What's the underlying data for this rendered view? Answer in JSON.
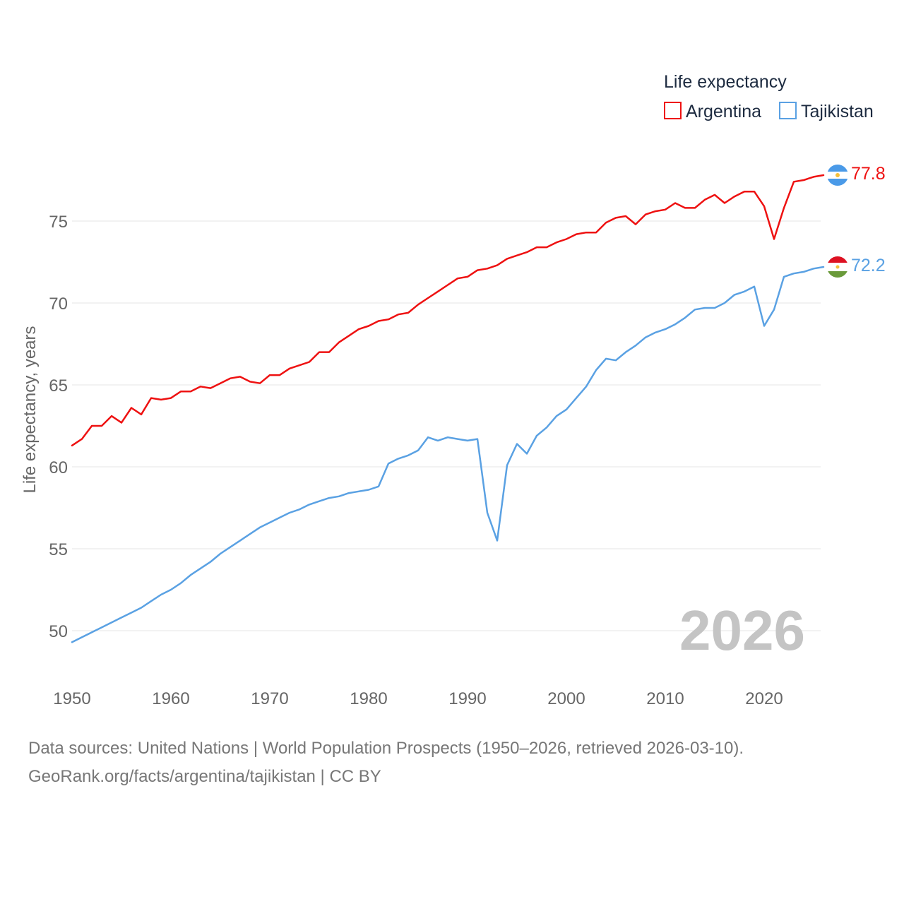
{
  "legend": {
    "title": "Life expectancy"
  },
  "watermark_year": "2026",
  "footer": {
    "line1": "Data sources: United Nations | World Population Prospects (1950–2026, retrieved 2026-03-10).",
    "line2": "GeoRank.org/facts/argentina/tajikistan | CC BY"
  },
  "colors": {
    "argentina": "#ee1111",
    "tajikistan": "#5aa1e3",
    "grid": "#e6e6e6",
    "flag_argentina_blue": "#4a9ae8",
    "flag_tajikistan_red": "#dd1122",
    "flag_tajikistan_green": "#6a9a3a",
    "flag_sun": "#f5c03a"
  },
  "chart_data": {
    "type": "line",
    "title": "Life expectancy",
    "xlabel": "",
    "ylabel": "Life expectancy, years",
    "xlim": [
      1950,
      2026
    ],
    "ylim": [
      48,
      80
    ],
    "xticks": [
      1950,
      1960,
      1970,
      1980,
      1990,
      2000,
      2010,
      2020
    ],
    "yticks": [
      50,
      55,
      60,
      65,
      70,
      75
    ],
    "grid": true,
    "legend_position": "top-right",
    "x": [
      1950,
      1951,
      1952,
      1953,
      1954,
      1955,
      1956,
      1957,
      1958,
      1959,
      1960,
      1961,
      1962,
      1963,
      1964,
      1965,
      1966,
      1967,
      1968,
      1969,
      1970,
      1971,
      1972,
      1973,
      1974,
      1975,
      1976,
      1977,
      1978,
      1979,
      1980,
      1981,
      1982,
      1983,
      1984,
      1985,
      1986,
      1987,
      1988,
      1989,
      1990,
      1991,
      1992,
      1993,
      1994,
      1995,
      1996,
      1997,
      1998,
      1999,
      2000,
      2001,
      2002,
      2003,
      2004,
      2005,
      2006,
      2007,
      2008,
      2009,
      2010,
      2011,
      2012,
      2013,
      2014,
      2015,
      2016,
      2017,
      2018,
      2019,
      2020,
      2021,
      2022,
      2023,
      2024,
      2025,
      2026
    ],
    "series": [
      {
        "name": "Argentina",
        "color": "#ee1111",
        "end_label": "77.8",
        "values": [
          61.3,
          61.7,
          62.5,
          62.5,
          63.1,
          62.7,
          63.6,
          63.2,
          64.2,
          64.1,
          64.2,
          64.6,
          64.6,
          64.9,
          64.8,
          65.1,
          65.4,
          65.5,
          65.2,
          65.1,
          65.6,
          65.6,
          66.0,
          66.2,
          66.4,
          67.0,
          67.0,
          67.6,
          68.0,
          68.4,
          68.6,
          68.9,
          69.0,
          69.3,
          69.4,
          69.9,
          70.3,
          70.7,
          71.1,
          71.5,
          71.6,
          72.0,
          72.1,
          72.3,
          72.7,
          72.9,
          73.1,
          73.4,
          73.4,
          73.7,
          73.9,
          74.2,
          74.3,
          74.3,
          74.9,
          75.2,
          75.3,
          74.8,
          75.4,
          75.6,
          75.7,
          76.1,
          75.8,
          75.8,
          76.3,
          76.6,
          76.1,
          76.5,
          76.8,
          76.8,
          75.9,
          73.9,
          75.8,
          77.4,
          77.5,
          77.7,
          77.8
        ]
      },
      {
        "name": "Tajikistan",
        "color": "#5aa1e3",
        "end_label": "72.2",
        "values": [
          49.3,
          49.6,
          49.9,
          50.2,
          50.5,
          50.8,
          51.1,
          51.4,
          51.8,
          52.2,
          52.5,
          52.9,
          53.4,
          53.8,
          54.2,
          54.7,
          55.1,
          55.5,
          55.9,
          56.3,
          56.6,
          56.9,
          57.2,
          57.4,
          57.7,
          57.9,
          58.1,
          58.2,
          58.4,
          58.5,
          58.6,
          58.8,
          60.2,
          60.5,
          60.7,
          61.0,
          61.8,
          61.6,
          61.8,
          61.7,
          61.6,
          61.7,
          57.2,
          55.5,
          60.1,
          61.4,
          60.8,
          61.9,
          62.4,
          63.1,
          63.5,
          64.2,
          64.9,
          65.9,
          66.6,
          66.5,
          67.0,
          67.4,
          67.9,
          68.2,
          68.4,
          68.7,
          69.1,
          69.6,
          69.7,
          69.7,
          70.0,
          70.5,
          70.7,
          71.0,
          68.6,
          69.6,
          71.6,
          71.8,
          71.9,
          72.1,
          72.2
        ]
      }
    ]
  }
}
